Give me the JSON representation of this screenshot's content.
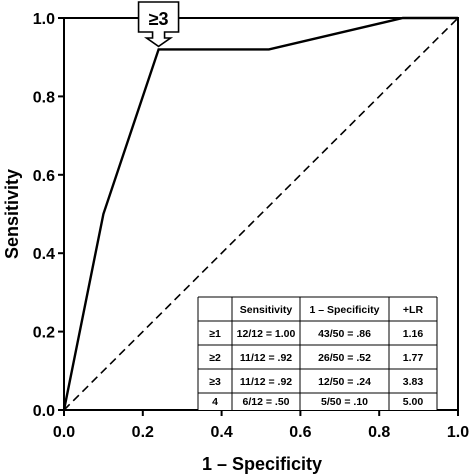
{
  "chart_data": {
    "type": "line",
    "xlabel": "1 – Specificity",
    "ylabel": "Sensitivity",
    "xlim": [
      0.0,
      1.0
    ],
    "ylim": [
      0.0,
      1.0
    ],
    "x_ticks": [
      "0.0",
      "0.2",
      "0.4",
      "0.6",
      "0.8",
      "1.0"
    ],
    "y_ticks": [
      "0.0",
      "0.2",
      "0.4",
      "0.6",
      "0.8",
      "1.0"
    ],
    "grid": false,
    "series": [
      {
        "style": "solid",
        "x": [
          0.0,
          0.1,
          0.24,
          0.52,
          0.86,
          1.0
        ],
        "y": [
          0.0,
          0.5,
          0.92,
          0.92,
          1.0,
          1.0
        ]
      },
      {
        "style": "dashed",
        "x": [
          0.0,
          1.0
        ],
        "y": [
          0.0,
          1.0
        ]
      }
    ],
    "annotation": {
      "text": "≥3",
      "x": 0.24,
      "y": 0.92
    },
    "table": {
      "headers": [
        "",
        "Sensitivity",
        "1 – Specificity",
        "+LR"
      ],
      "rows": [
        [
          "≥1",
          "12/12 = 1.00",
          "43/50 = .86",
          "1.16"
        ],
        [
          "≥2",
          "11/12 = .92",
          "26/50 = .52",
          "1.77"
        ],
        [
          "≥3",
          "11/12 = .92",
          "12/50 = .24",
          "3.83"
        ],
        [
          "4",
          "6/12 = .50",
          "5/50 = .10",
          "5.00"
        ]
      ]
    }
  }
}
